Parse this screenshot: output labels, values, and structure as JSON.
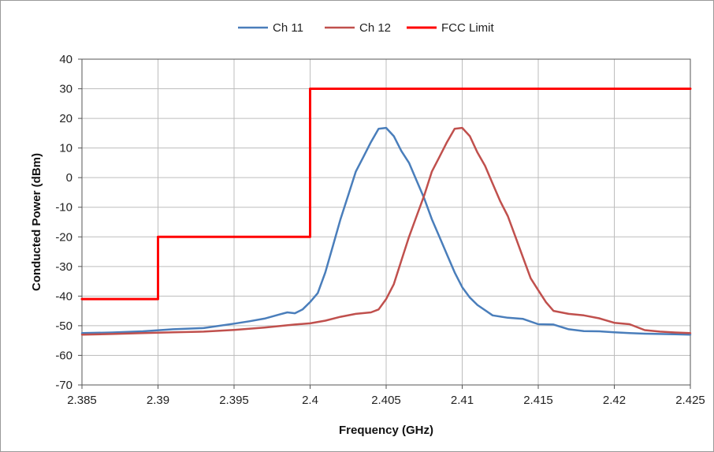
{
  "chart_data": {
    "type": "line",
    "title": "",
    "xlabel": "Frequency (GHz)",
    "ylabel": "Conducted Power (dBm)",
    "xlim": [
      2.385,
      2.425
    ],
    "ylim": [
      -70,
      40
    ],
    "x_ticks": [
      "2.385",
      "2.39",
      "2.395",
      "2.4",
      "2.405",
      "2.41",
      "2.415",
      "2.42",
      "2.425"
    ],
    "y_ticks": [
      "40",
      "30",
      "20",
      "10",
      "0",
      "-10",
      "-20",
      "-30",
      "-40",
      "-50",
      "-60",
      "-70"
    ],
    "grid": true,
    "legend_position": "top",
    "series": [
      {
        "name": "Ch 11",
        "color": "#4a7ebb",
        "x": [
          2.385,
          2.387,
          2.389,
          2.391,
          2.393,
          2.395,
          2.396,
          2.397,
          2.398,
          2.3985,
          2.399,
          2.3995,
          2.4,
          2.4005,
          2.401,
          2.4015,
          2.402,
          2.4025,
          2.403,
          2.4035,
          2.404,
          2.4045,
          2.405,
          2.4055,
          2.406,
          2.4065,
          2.407,
          2.4075,
          2.408,
          2.4085,
          2.409,
          2.4095,
          2.41,
          2.4105,
          2.411,
          2.412,
          2.413,
          2.414,
          2.415,
          2.416,
          2.417,
          2.418,
          2.419,
          2.42,
          2.421,
          2.422,
          2.423,
          2.424,
          2.425
        ],
        "y": [
          -52.5,
          -52.3,
          -51.9,
          -51.2,
          -50.8,
          -49.3,
          -48.5,
          -47.6,
          -46.2,
          -45.5,
          -45.8,
          -44.5,
          -42.0,
          -39.0,
          -32.0,
          -23.0,
          -14.0,
          -6.0,
          2.0,
          7.0,
          12.0,
          16.5,
          16.8,
          14.0,
          9.0,
          5.0,
          -1.0,
          -7.0,
          -14.0,
          -20.0,
          -26.0,
          -32.0,
          -37.0,
          -40.5,
          -43.0,
          -46.5,
          -47.3,
          -47.7,
          -49.5,
          -49.6,
          -51.2,
          -51.8,
          -51.9,
          -52.2,
          -52.5,
          -52.7,
          -52.8,
          -52.9,
          -53.0
        ]
      },
      {
        "name": "Ch 12",
        "color": "#c0504d",
        "x": [
          2.385,
          2.387,
          2.389,
          2.391,
          2.393,
          2.395,
          2.397,
          2.399,
          2.4,
          2.401,
          2.402,
          2.403,
          2.404,
          2.4045,
          2.405,
          2.4055,
          2.406,
          2.4065,
          2.407,
          2.4075,
          2.408,
          2.4085,
          2.409,
          2.4095,
          2.41,
          2.4105,
          2.411,
          2.4115,
          2.412,
          2.4125,
          2.413,
          2.4135,
          2.414,
          2.4145,
          2.415,
          2.4155,
          2.416,
          2.417,
          2.418,
          2.419,
          2.42,
          2.421,
          2.422,
          2.423,
          2.424,
          2.425
        ],
        "y": [
          -53.0,
          -52.8,
          -52.5,
          -52.2,
          -52.0,
          -51.4,
          -50.6,
          -49.6,
          -49.2,
          -48.3,
          -47.0,
          -46.0,
          -45.5,
          -44.5,
          -41.0,
          -36.0,
          -28.0,
          -20.0,
          -13.0,
          -6.0,
          2.0,
          7.0,
          12.0,
          16.5,
          16.8,
          14.0,
          8.5,
          4.0,
          -2.0,
          -8.0,
          -13.0,
          -20.0,
          -27.0,
          -34.0,
          -38.0,
          -42.0,
          -45.0,
          -46.0,
          -46.5,
          -47.5,
          -49.0,
          -49.5,
          -51.5,
          -52.0,
          -52.3,
          -52.5
        ]
      },
      {
        "name": "FCC Limit",
        "color": "#ff0000",
        "x": [
          2.385,
          2.39,
          2.39,
          2.4,
          2.4,
          2.425
        ],
        "y": [
          -41,
          -41,
          -20,
          -20,
          30,
          30
        ]
      }
    ]
  }
}
